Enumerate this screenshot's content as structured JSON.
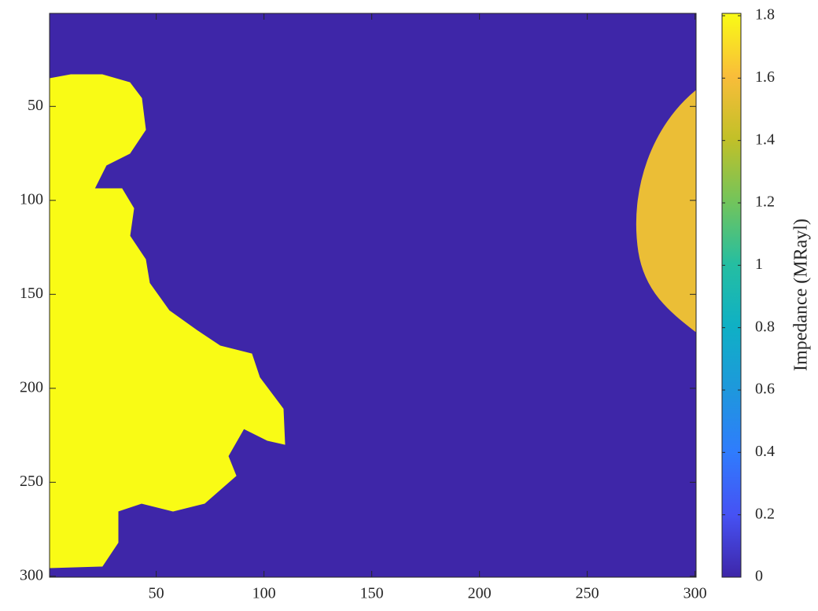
{
  "chart_data": {
    "type": "heatmap",
    "xlim": [
      0.5,
      300.5
    ],
    "xticks": [
      50,
      100,
      150,
      200,
      250,
      300
    ],
    "ylim": [
      0.5,
      300.5
    ],
    "yticks": [
      50,
      100,
      150,
      200,
      250,
      300
    ],
    "y_reversed": true,
    "image": {
      "background": 0,
      "patches": [
        1.8,
        1.55
      ]
    },
    "colorbar": {
      "label": "Impedance (MRayl)",
      "clim": [
        0,
        1.8
      ],
      "ticks": [
        0,
        0.2,
        0.4,
        0.6,
        0.8,
        1,
        1.2,
        1.4,
        1.6,
        1.8
      ]
    },
    "colormap": [
      "#3e26a8",
      "#4652f4",
      "#2f7cfd",
      "#1e98dc",
      "#0fb0c5",
      "#25bea1",
      "#73c45b",
      "#c2c028",
      "#f9bd3a",
      "#f9fb15"
    ]
  }
}
